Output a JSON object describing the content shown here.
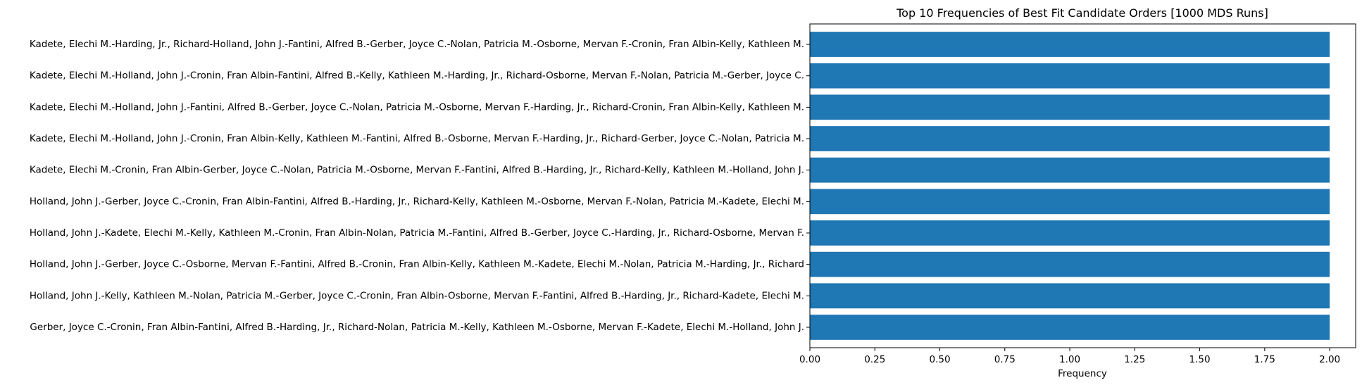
{
  "chart_data": {
    "type": "bar",
    "orientation": "horizontal",
    "title": "Top 10 Frequencies of Best Fit Candidate Orders [1000 MDS Runs]",
    "xlabel": "Frequency",
    "ylabel": "",
    "xlim": [
      0,
      2.1
    ],
    "xticks": [
      "0.00",
      "0.25",
      "0.50",
      "0.75",
      "1.00",
      "1.25",
      "1.50",
      "1.75",
      "2.00"
    ],
    "xtick_values": [
      0,
      0.25,
      0.5,
      0.75,
      1.0,
      1.25,
      1.5,
      1.75,
      2.0
    ],
    "bar_color": "#1f77b4",
    "grid": false,
    "categories": [
      "Kadete, Elechi M.-Harding, Jr., Richard-Holland, John J.-Fantini, Alfred B.-Gerber, Joyce C.-Nolan, Patricia M.-Osborne, Mervan F.-Cronin, Fran Albin-Kelly, Kathleen M.",
      "Kadete, Elechi M.-Holland, John J.-Cronin, Fran Albin-Fantini, Alfred B.-Kelly, Kathleen M.-Harding, Jr., Richard-Osborne, Mervan F.-Nolan, Patricia M.-Gerber, Joyce C.",
      "Kadete, Elechi M.-Holland, John J.-Fantini, Alfred B.-Gerber, Joyce C.-Nolan, Patricia M.-Osborne, Mervan F.-Harding, Jr., Richard-Cronin, Fran Albin-Kelly, Kathleen M.",
      "Kadete, Elechi M.-Holland, John J.-Cronin, Fran Albin-Kelly, Kathleen M.-Fantini, Alfred B.-Osborne, Mervan F.-Harding, Jr., Richard-Gerber, Joyce C.-Nolan, Patricia M.",
      "Kadete, Elechi M.-Cronin, Fran Albin-Gerber, Joyce C.-Nolan, Patricia M.-Osborne, Mervan F.-Fantini, Alfred B.-Harding, Jr., Richard-Kelly, Kathleen M.-Holland, John J.",
      "Holland, John J.-Gerber, Joyce C.-Cronin, Fran Albin-Fantini, Alfred B.-Harding, Jr., Richard-Kelly, Kathleen M.-Osborne, Mervan F.-Nolan, Patricia M.-Kadete, Elechi M.",
      "Holland, John J.-Kadete, Elechi M.-Kelly, Kathleen M.-Cronin, Fran Albin-Nolan, Patricia M.-Fantini, Alfred B.-Gerber, Joyce C.-Harding, Jr., Richard-Osborne, Mervan F.",
      "Holland, John J.-Gerber, Joyce C.-Osborne, Mervan F.-Fantini, Alfred B.-Cronin, Fran Albin-Kelly, Kathleen M.-Kadete, Elechi M.-Nolan, Patricia M.-Harding, Jr., Richard",
      "Holland, John J.-Kelly, Kathleen M.-Nolan, Patricia M.-Gerber, Joyce C.-Cronin, Fran Albin-Osborne, Mervan F.-Fantini, Alfred B.-Harding, Jr., Richard-Kadete, Elechi M.",
      "Gerber, Joyce C.-Cronin, Fran Albin-Fantini, Alfred B.-Harding, Jr., Richard-Nolan, Patricia M.-Kelly, Kathleen M.-Osborne, Mervan F.-Kadete, Elechi M.-Holland, John J."
    ],
    "values": [
      2,
      2,
      2,
      2,
      2,
      2,
      2,
      2,
      2,
      2
    ]
  }
}
